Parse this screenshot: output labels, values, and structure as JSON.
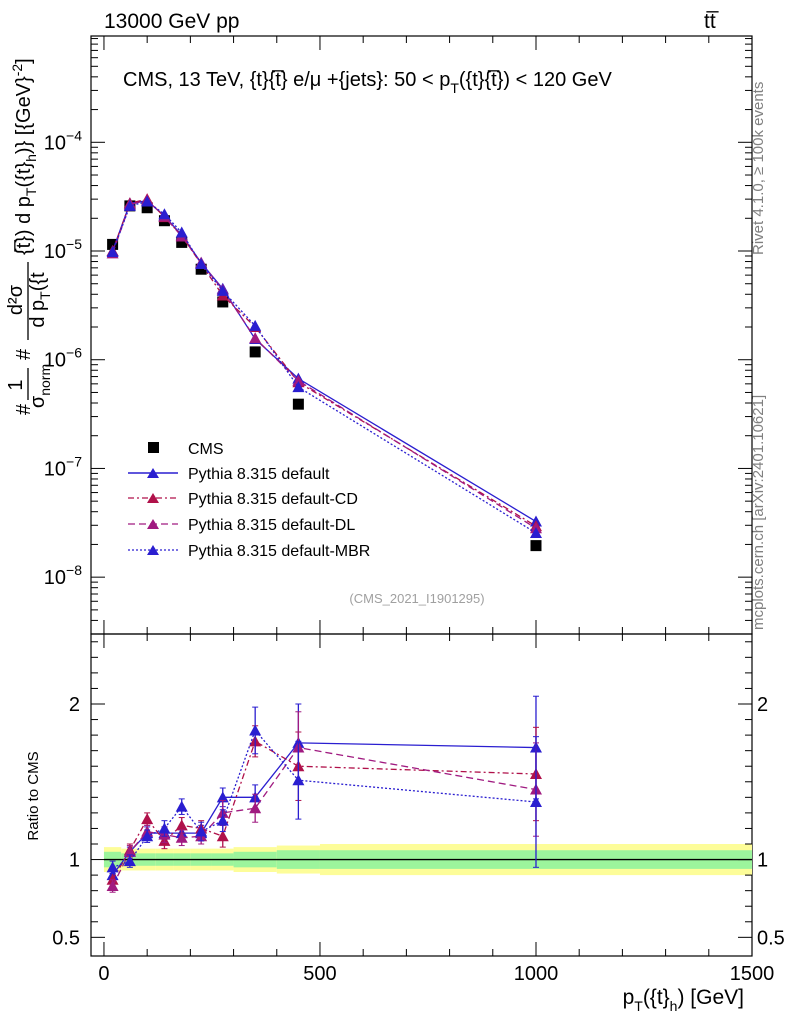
{
  "header": {
    "energy": "13000 GeV pp",
    "process": "tt̅",
    "side_top": "Rivet 4.1.0, ≥ 100k events",
    "side_bottom": "mcplots.cern.ch [arXiv:2401.10621]"
  },
  "chart_data": [
    {
      "type": "line",
      "title": "CMS, 13 TeV, {t}{t̅} e/μ +{jets}: 50 <  p_T({t}{t̅}) < 120 GeV",
      "title_parts": {
        "main": "CMS, 13 TeV, {t}{t̅} e/μ +{jets}: 50 <  p",
        "sub": "T",
        "tail": "({t}{t̅}) < 120 GeV"
      },
      "ylabel": "#frac{1}{σ_norm} #frac{d²σ}{d p_T({t}{t̅}) d p_T({t}_h)} [{GeV}⁻²]",
      "ylabel_parts": {
        "lead": "#",
        "frac1_num": "1",
        "frac1_den": "σ",
        "frac1_den_sub": "norm",
        "mid": "#",
        "frac2_num": "d²σ",
        "frac2_den": "d p",
        "frac2_den_sub": "T",
        "frac2_den_tail": "({t",
        "rest": "{t̅}) d p",
        "rest_sub": "T",
        "rest_tail": "({t}",
        "rest_sub2": "h",
        "rest_end": ")} [{GeV}",
        "rest_sup": "-2",
        "rest_close": "]"
      },
      "yscale": "log",
      "ylim": [
        3e-09,
        0.00095
      ],
      "xlim": [
        -30,
        1500
      ],
      "ytick_labels": [
        {
          "base": "10",
          "exp": "−4",
          "value": 0.0001
        },
        {
          "base": "10",
          "exp": "−5",
          "value": 1e-05
        },
        {
          "base": "10",
          "exp": "−6",
          "value": 1e-06
        },
        {
          "base": "10",
          "exp": "−7",
          "value": 1e-07
        },
        {
          "base": "10",
          "exp": "−8",
          "value": 1e-08
        }
      ],
      "x": [
        20,
        60,
        100,
        140,
        180,
        225,
        275,
        350,
        450,
        1000
      ],
      "series": [
        {
          "name": "CMS",
          "color": "#000000",
          "marker": "square",
          "values": [
            1.15e-05,
            2.6e-05,
            2.5e-05,
            1.9e-05,
            1.2e-05,
            6.8e-06,
            3.4e-06,
            1.18e-06,
            3.9e-07,
            1.95e-08
          ]
        },
        {
          "name": "Pythia 8.315 default",
          "color": "#2a1ed0",
          "marker": "triangle",
          "dash": "none",
          "values": [
            1e-05,
            2.75e-05,
            2.9e-05,
            2.1e-05,
            1.4e-05,
            7.8e-06,
            4.5e-06,
            1.55e-06,
            6.7e-07,
            3.25e-08
          ]
        },
        {
          "name": "Pythia 8.315 default-CD",
          "color": "#b0114a",
          "marker": "triangle",
          "dash": "6,3,2,3",
          "values": [
            1e-05,
            2.75e-05,
            3e-05,
            2.05e-05,
            1.38e-05,
            7.6e-06,
            3.9e-06,
            2e-06,
            6.2e-07,
            2.95e-08
          ]
        },
        {
          "name": "Pythia 8.315 default-DL",
          "color": "#a01a80",
          "marker": "triangle",
          "dash": "7,4",
          "values": [
            9.5e-06,
            2.68e-05,
            2.92e-05,
            2.08e-05,
            1.36e-05,
            7.8e-06,
            4.4e-06,
            1.58e-06,
            6.4e-07,
            2.82e-08
          ]
        },
        {
          "name": "Pythia 8.315 default-MBR",
          "color": "#2a1ed0",
          "marker": "triangle",
          "dash": "2,2",
          "values": [
            9.8e-06,
            2.6e-05,
            2.85e-05,
            2.18e-05,
            1.48e-05,
            7.6e-06,
            4.3e-06,
            2.05e-06,
            5.6e-07,
            2.55e-08
          ]
        }
      ],
      "legend": {
        "placement": "lower-left"
      },
      "annotation": "(CMS_2021_I1901295)"
    },
    {
      "type": "line",
      "ylabel": "Ratio to CMS",
      "xlabel_parts": {
        "main": "p",
        "sub": "T",
        "mid": "({t}",
        "sub2": "h",
        "end": ") [GeV]"
      },
      "ylim": [
        0.38,
        2.45
      ],
      "xlim": [
        -30,
        1500
      ],
      "yticks": [
        0.5,
        1,
        2
      ],
      "ytick_labels": [
        "0.5",
        "1",
        "2"
      ],
      "xticks": [
        0,
        500,
        1000,
        1500
      ],
      "xtick_labels": [
        "0",
        "500",
        "1000",
        "1500"
      ],
      "bin_edges": [
        0,
        40,
        80,
        120,
        160,
        200,
        250,
        300,
        400,
        500,
        1500
      ],
      "band_inner": [
        0.05,
        0.04,
        0.04,
        0.04,
        0.04,
        0.04,
        0.04,
        0.05,
        0.06,
        0.06
      ],
      "band_outer": [
        0.08,
        0.07,
        0.07,
        0.07,
        0.07,
        0.07,
        0.07,
        0.08,
        0.09,
        0.1
      ],
      "band_colors": {
        "inner": "#9cf59c",
        "outer": "#fdfd99"
      },
      "x": [
        20,
        60,
        100,
        140,
        180,
        225,
        275,
        350,
        450,
        1000
      ],
      "series": [
        {
          "name": "Pythia 8.315 default",
          "values": [
            0.9,
            1.05,
            1.17,
            1.17,
            1.17,
            1.17,
            1.4,
            1.4,
            1.75,
            1.72
          ],
          "errors": [
            0.03,
            0.03,
            0.04,
            0.04,
            0.05,
            0.05,
            0.06,
            0.08,
            0.25,
            0.33
          ]
        },
        {
          "name": "Pythia 8.315 default-CD",
          "values": [
            0.87,
            1.06,
            1.26,
            1.12,
            1.22,
            1.2,
            1.15,
            1.76,
            1.6,
            1.55
          ],
          "errors": [
            0.04,
            0.04,
            0.04,
            0.05,
            0.05,
            0.05,
            0.07,
            0.1,
            0.22,
            0.3
          ]
        },
        {
          "name": "Pythia 8.315 default-DL",
          "values": [
            0.83,
            1.05,
            1.18,
            1.16,
            1.14,
            1.15,
            1.3,
            1.33,
            1.72,
            1.45
          ],
          "errors": [
            0.04,
            0.04,
            0.04,
            0.05,
            0.05,
            0.05,
            0.08,
            0.09,
            0.23,
            0.3
          ]
        },
        {
          "name": "Pythia 8.315 default-MBR",
          "values": [
            0.95,
            0.99,
            1.15,
            1.2,
            1.34,
            1.18,
            1.25,
            1.83,
            1.51,
            1.37
          ],
          "errors": [
            0.04,
            0.04,
            0.04,
            0.05,
            0.05,
            0.06,
            0.07,
            0.15,
            0.25,
            0.42
          ]
        }
      ]
    }
  ]
}
